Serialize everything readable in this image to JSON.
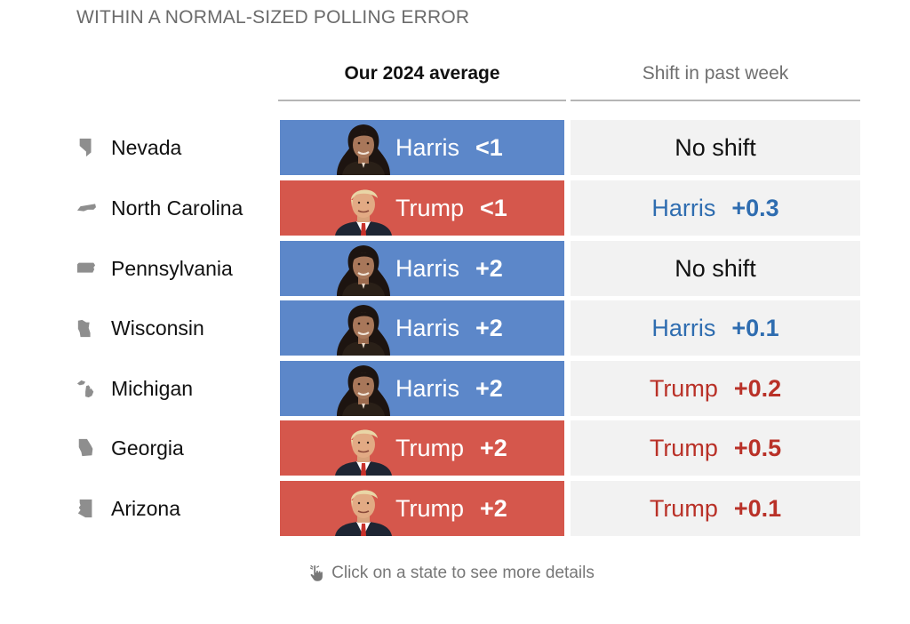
{
  "title": "WITHIN A NORMAL-SIZED POLLING ERROR",
  "headers": {
    "average": "Our 2024 average",
    "shift": "Shift in past week"
  },
  "footer": "Click on a state to see more details",
  "colors": {
    "harris_fill": "#5c87c9",
    "trump_fill": "#d5574c",
    "harris_text": "#2f6db0",
    "trump_text": "#b93128"
  },
  "chart_data": {
    "type": "table",
    "columns": [
      "Our 2024 average",
      "Shift in past week"
    ],
    "rows": [
      {
        "state": "Nevada",
        "icon": "nevada-outline-icon",
        "leader": "Harris",
        "margin": "<1",
        "shift_text": "No shift",
        "shift_leader": "",
        "shift_value": ""
      },
      {
        "state": "North Carolina",
        "icon": "north-carolina-outline-icon",
        "leader": "Trump",
        "margin": "<1",
        "shift_text": "",
        "shift_leader": "Harris",
        "shift_value": "+0.3"
      },
      {
        "state": "Pennsylvania",
        "icon": "pennsylvania-outline-icon",
        "leader": "Harris",
        "margin": "+2",
        "shift_text": "No shift",
        "shift_leader": "",
        "shift_value": ""
      },
      {
        "state": "Wisconsin",
        "icon": "wisconsin-outline-icon",
        "leader": "Harris",
        "margin": "+2",
        "shift_text": "",
        "shift_leader": "Harris",
        "shift_value": "+0.1"
      },
      {
        "state": "Michigan",
        "icon": "michigan-outline-icon",
        "leader": "Harris",
        "margin": "+2",
        "shift_text": "",
        "shift_leader": "Trump",
        "shift_value": "+0.2"
      },
      {
        "state": "Georgia",
        "icon": "georgia-outline-icon",
        "leader": "Trump",
        "margin": "+2",
        "shift_text": "",
        "shift_leader": "Trump",
        "shift_value": "+0.5"
      },
      {
        "state": "Arizona",
        "icon": "arizona-outline-icon",
        "leader": "Trump",
        "margin": "+2",
        "shift_text": "",
        "shift_leader": "Trump",
        "shift_value": "+0.1"
      }
    ]
  }
}
